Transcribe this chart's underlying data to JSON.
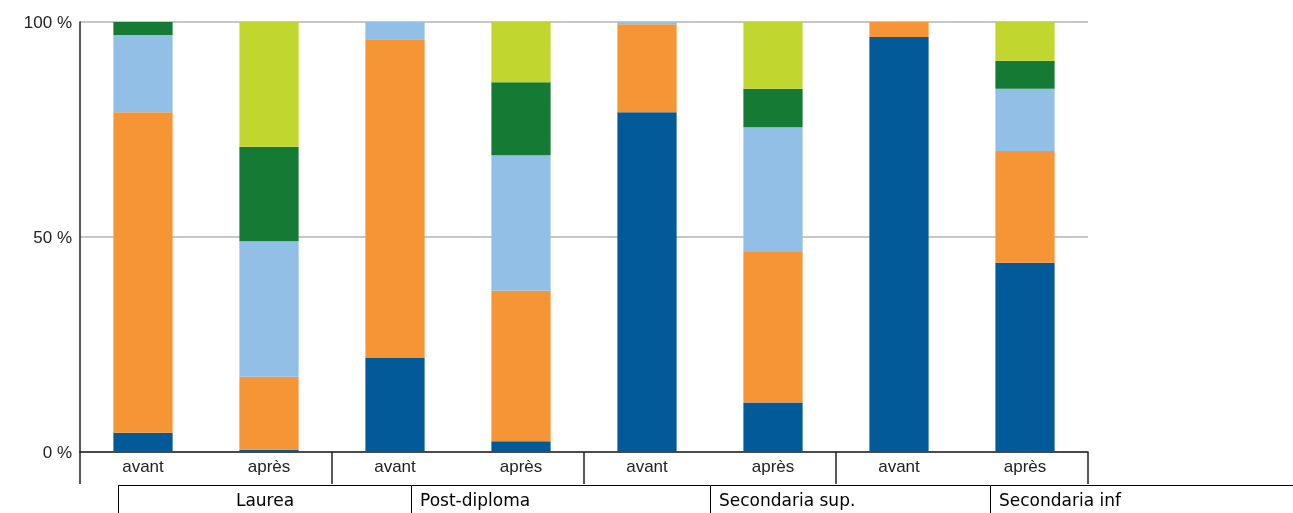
{
  "chart_data": {
    "type": "bar",
    "stacked": true,
    "categories": [
      "avant",
      "après",
      "avant",
      "après",
      "avant",
      "après",
      "avant",
      "après"
    ],
    "series": [
      {
        "color": "#035a98",
        "values": [
          4.5,
          0.5,
          22,
          2.5,
          79,
          11.5,
          96.5,
          44
        ]
      },
      {
        "color": "#f59535",
        "values": [
          74.5,
          17,
          74,
          35,
          20.5,
          35,
          3.5,
          26
        ]
      },
      {
        "color": "#92bfe6",
        "values": [
          18,
          31.5,
          4,
          31.5,
          0.5,
          29,
          0,
          14.5
        ]
      },
      {
        "color": "#157a33",
        "values": [
          3,
          22,
          0,
          17,
          0,
          9,
          0,
          6.5
        ]
      },
      {
        "color": "#c1d72f",
        "values": [
          0,
          29,
          0,
          14,
          0,
          15.5,
          0,
          9
        ]
      }
    ],
    "ylim": [
      0,
      100
    ],
    "yticks": [
      {
        "value": 0,
        "label": "0 %"
      },
      {
        "value": 50,
        "label": "50 %"
      },
      {
        "value": 100,
        "label": "100 %"
      }
    ],
    "grid": "y",
    "annotations": [
      "Laurea",
      "Post-diploma",
      "Secondaria sup.",
      "Secondaria inf"
    ]
  }
}
